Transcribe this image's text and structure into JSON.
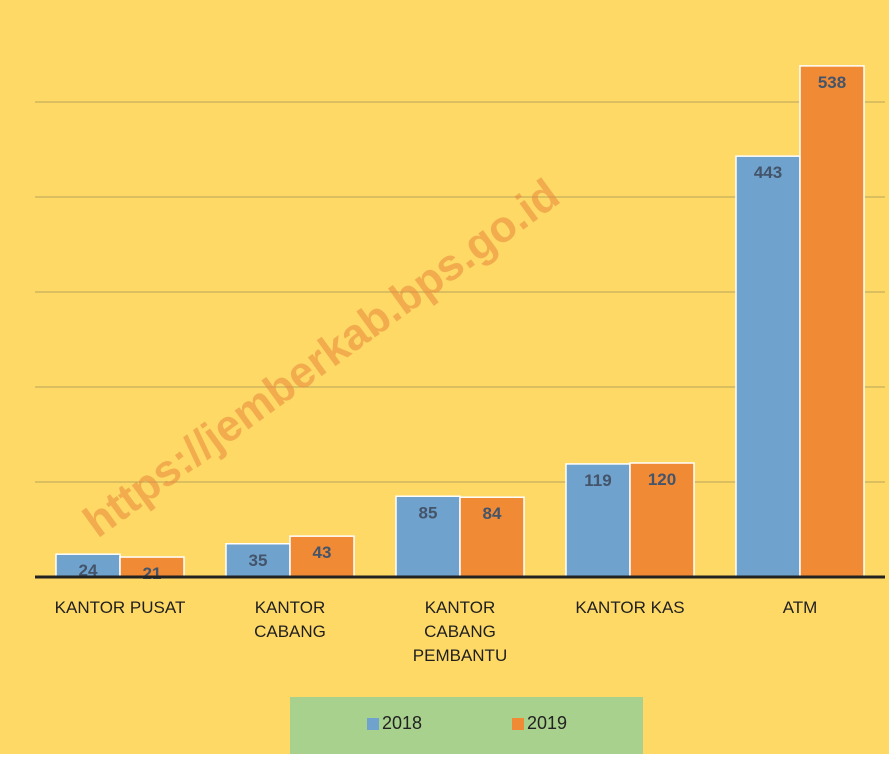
{
  "chart_data": {
    "type": "bar",
    "categories": [
      "KANTOR PUSAT",
      "KANTOR CABANG",
      "KANTOR CABANG PEMBANTU",
      "KANTOR KAS",
      "ATM"
    ],
    "series": [
      {
        "name": "2018",
        "color": "#6fa2cc",
        "values": [
          24,
          35,
          85,
          119,
          443
        ]
      },
      {
        "name": "2019",
        "color": "#f08a35",
        "values": [
          21,
          43,
          84,
          120,
          538
        ]
      }
    ],
    "ylim": [
      0,
      600
    ],
    "yticks": [
      0,
      100,
      200,
      300,
      400,
      500
    ],
    "grid": true,
    "legend": "bottom",
    "watermark": "https://jemberkab.bps.go.id"
  }
}
